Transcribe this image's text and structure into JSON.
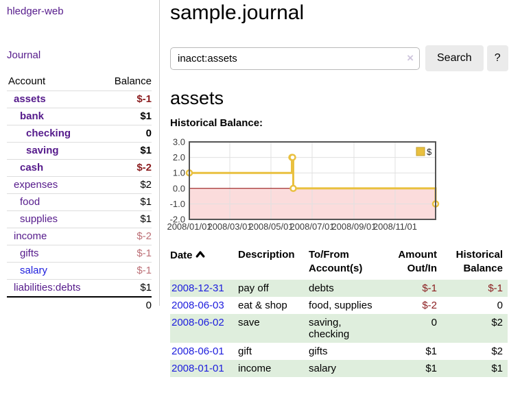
{
  "colors": {
    "link_purple": "#551a8b",
    "link_blue": "#1c1cdd",
    "negative_strong": "#8b1e20",
    "negative_muted": "#bc6f76",
    "row_stripe_green": "#dfeedd",
    "series_gold": "#e9c03f",
    "zero_line_red": "#8b0000",
    "negative_region_pink": "#fbdcdc",
    "button_gray": "#ebebeb"
  },
  "sidebar": {
    "brand": "hledger-web",
    "nav": {
      "journal": "Journal"
    },
    "table": {
      "headers": [
        "Account",
        "Balance"
      ],
      "rows": [
        {
          "account": "assets",
          "depth": 1,
          "bold": true,
          "balance": "$-1"
        },
        {
          "account": "bank",
          "depth": 2,
          "bold": true,
          "balance": "$1"
        },
        {
          "account": "checking",
          "depth": 3,
          "bold": true,
          "balance": "0"
        },
        {
          "account": "saving",
          "depth": 3,
          "bold": true,
          "balance": "$1"
        },
        {
          "account": "cash",
          "depth": 2,
          "bold": true,
          "balance": "$-2"
        },
        {
          "account": "expenses",
          "depth": 1,
          "bold": false,
          "balance": "$2"
        },
        {
          "account": "food",
          "depth": 2,
          "bold": false,
          "balance": "$1"
        },
        {
          "account": "supplies",
          "depth": 2,
          "bold": false,
          "balance": "$1"
        },
        {
          "account": "income",
          "depth": 1,
          "bold": false,
          "balance": "$-2"
        },
        {
          "account": "gifts",
          "depth": 2,
          "bold": false,
          "balance": "$-1"
        },
        {
          "account": "salary",
          "depth": 2,
          "bold": false,
          "balance": "$-1",
          "link": "blue"
        },
        {
          "account": "liabilities:debts",
          "depth": 1,
          "bold": false,
          "balance": "$1"
        }
      ],
      "total": "0"
    }
  },
  "header": {
    "title": "sample.journal"
  },
  "search": {
    "value": "inacct:assets",
    "placeholder": "",
    "clear_icon": "×",
    "button_label": "Search",
    "help_label": "?"
  },
  "account_page": {
    "heading": "assets",
    "chart_label": "Historical Balance:"
  },
  "chart_data": {
    "type": "line",
    "style": "step",
    "title": "Historical Balance:",
    "series": [
      {
        "name": "$",
        "points": [
          [
            "2008-01-01",
            1
          ],
          [
            "2008-06-01",
            2
          ],
          [
            "2008-06-02",
            2
          ],
          [
            "2008-06-03",
            0
          ],
          [
            "2008-12-31",
            -1
          ]
        ]
      }
    ],
    "x_range": [
      "2008-01-01",
      "2008-12-31"
    ],
    "ylim": [
      -2,
      3
    ],
    "yticks": [
      -2,
      -1,
      0,
      1,
      2,
      3
    ],
    "ytick_labels": [
      "-2.0",
      "-1.0",
      "0.0",
      "1.0",
      "2.0",
      "3.0"
    ],
    "xticks": [
      {
        "date": "2008-01-01",
        "label": "2008/01/01"
      },
      {
        "date": "2008-03-01",
        "label": "2008/03/01"
      },
      {
        "date": "2008-05-01",
        "label": "2008/05/01"
      },
      {
        "date": "2008-07-01",
        "label": "2008/07/01"
      },
      {
        "date": "2008-09-01",
        "label": "2008/09/01"
      },
      {
        "date": "2008-11-01",
        "label": "2008/11/01"
      }
    ],
    "grid": true,
    "legend_position": "top-right",
    "colors": {
      "series": "#e9c03f",
      "zero_line": "#8b0000",
      "negative_region": "#fbdcdc",
      "grid": "#e0e0e0",
      "border": "#545454"
    }
  },
  "register": {
    "headers": [
      "Date",
      "Description",
      "To/From Account(s)",
      "Amount Out/In",
      "Historical Balance"
    ],
    "rows": [
      {
        "date": "2008-12-31",
        "description": "pay off",
        "accounts": "debts",
        "amount": "$-1",
        "balance": "$-1"
      },
      {
        "date": "2008-06-03",
        "description": "eat & shop",
        "accounts": "food, supplies",
        "amount": "$-2",
        "balance": "0"
      },
      {
        "date": "2008-06-02",
        "description": "save",
        "accounts": "saving, checking",
        "amount": "0",
        "balance": "$2"
      },
      {
        "date": "2008-06-01",
        "description": "gift",
        "accounts": "gifts",
        "amount": "$1",
        "balance": "$2"
      },
      {
        "date": "2008-01-01",
        "description": "income",
        "accounts": "salary",
        "amount": "$1",
        "balance": "$1"
      }
    ]
  }
}
